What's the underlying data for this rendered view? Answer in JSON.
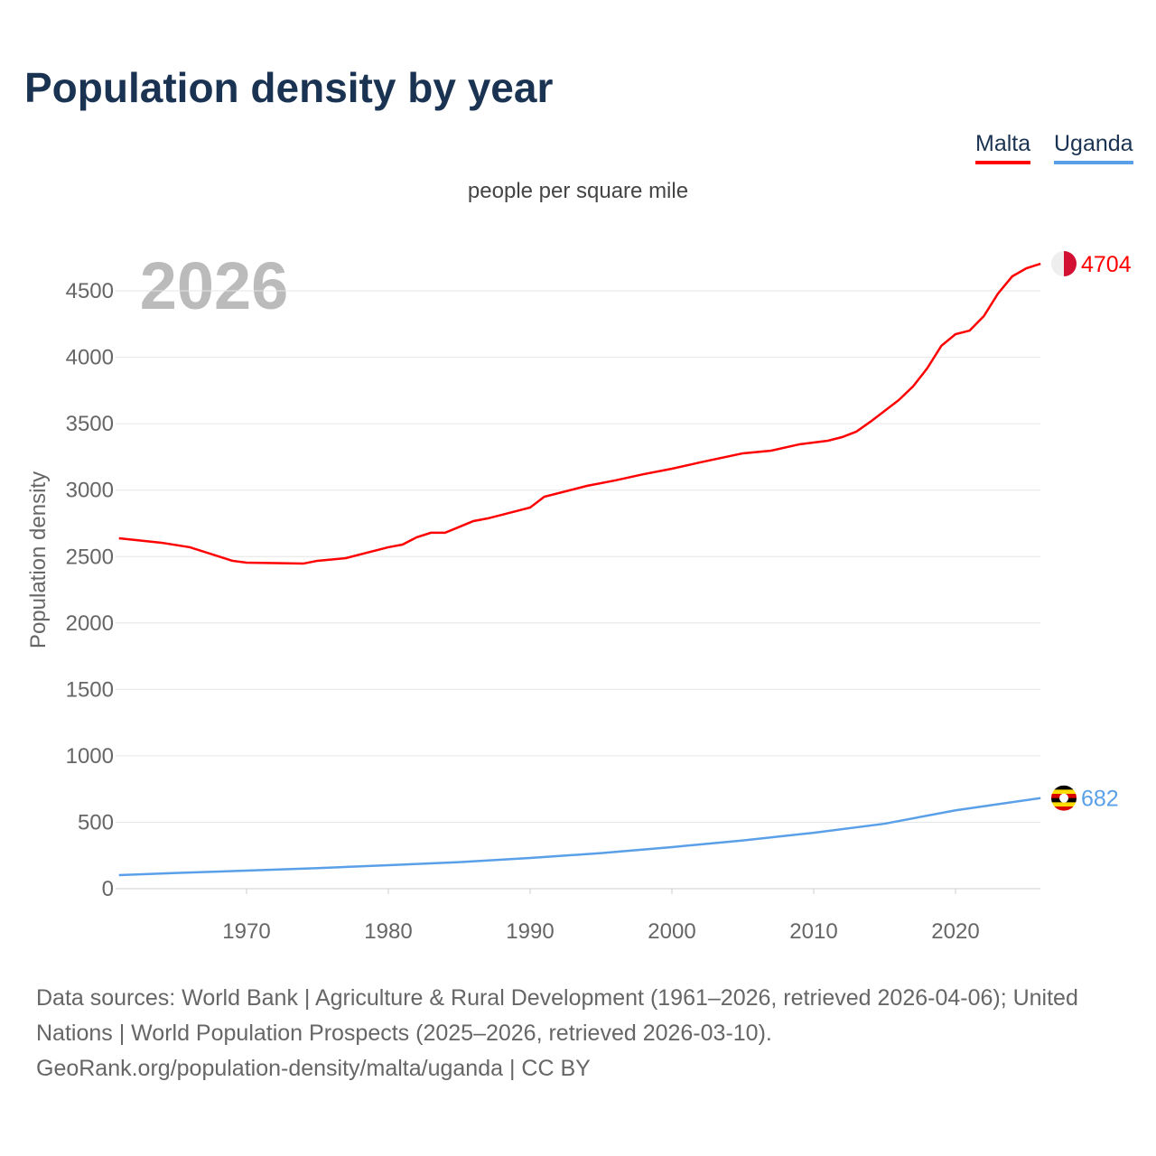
{
  "title": "Population density by year",
  "legend": [
    {
      "label": "Malta",
      "color": "#ff0000"
    },
    {
      "label": "Uganda",
      "color": "#5aa0e8"
    }
  ],
  "footer": {
    "line1": "Data sources: World Bank | Agriculture & Rural Development (1961–2026, retrieved 2026-04-06); United",
    "line2": "Nations | World Population Prospects (2025–2026, retrieved 2026-03-10).",
    "line3": "GeoRank.org/population-density/malta/uganda | CC BY"
  },
  "chart_data": {
    "type": "line",
    "title": "Population density by year",
    "subtitle": "people per square mile",
    "ylabel": "Population density",
    "xlabel": "",
    "year_label": "2026",
    "xlim": [
      1961,
      2026
    ],
    "ylim": [
      0,
      4700
    ],
    "xticks": [
      1970,
      1980,
      1990,
      2000,
      2010,
      2020
    ],
    "yticks": [
      0,
      500,
      1000,
      1500,
      2000,
      2500,
      3000,
      3500,
      4000,
      4500
    ],
    "grid": true,
    "legend_position": "top-right",
    "series": [
      {
        "name": "Malta",
        "color": "#ff0000",
        "end_label": "4704",
        "x": [
          1961,
          1964,
          1966,
          1969,
          1970,
          1974,
          1975,
          1977,
          1980,
          1981,
          1982,
          1983,
          1984,
          1986,
          1987,
          1988,
          1990,
          1991,
          1994,
          1996,
          1998,
          2000,
          2002,
          2005,
          2007,
          2009,
          2011,
          2012,
          2013,
          2014,
          2015,
          2016,
          2017,
          2018,
          2019,
          2020,
          2021,
          2022,
          2023,
          2024,
          2025,
          2026
        ],
        "y": [
          2638,
          2604,
          2570,
          2468,
          2454,
          2447,
          2468,
          2488,
          2570,
          2590,
          2645,
          2679,
          2679,
          2767,
          2787,
          2814,
          2869,
          2950,
          3032,
          3073,
          3120,
          3161,
          3209,
          3277,
          3297,
          3345,
          3372,
          3399,
          3440,
          3515,
          3596,
          3678,
          3780,
          3916,
          4086,
          4174,
          4201,
          4310,
          4480,
          4609,
          4670,
          4704
        ]
      },
      {
        "name": "Uganda",
        "color": "#5aa0e8",
        "end_label": "682",
        "x": [
          1961,
          1965,
          1970,
          1975,
          1980,
          1985,
          1990,
          1995,
          2000,
          2005,
          2010,
          2015,
          2020,
          2026
        ],
        "y": [
          102,
          118,
          136,
          155,
          177,
          200,
          231,
          268,
          313,
          363,
          421,
          489,
          590,
          682
        ]
      }
    ]
  }
}
